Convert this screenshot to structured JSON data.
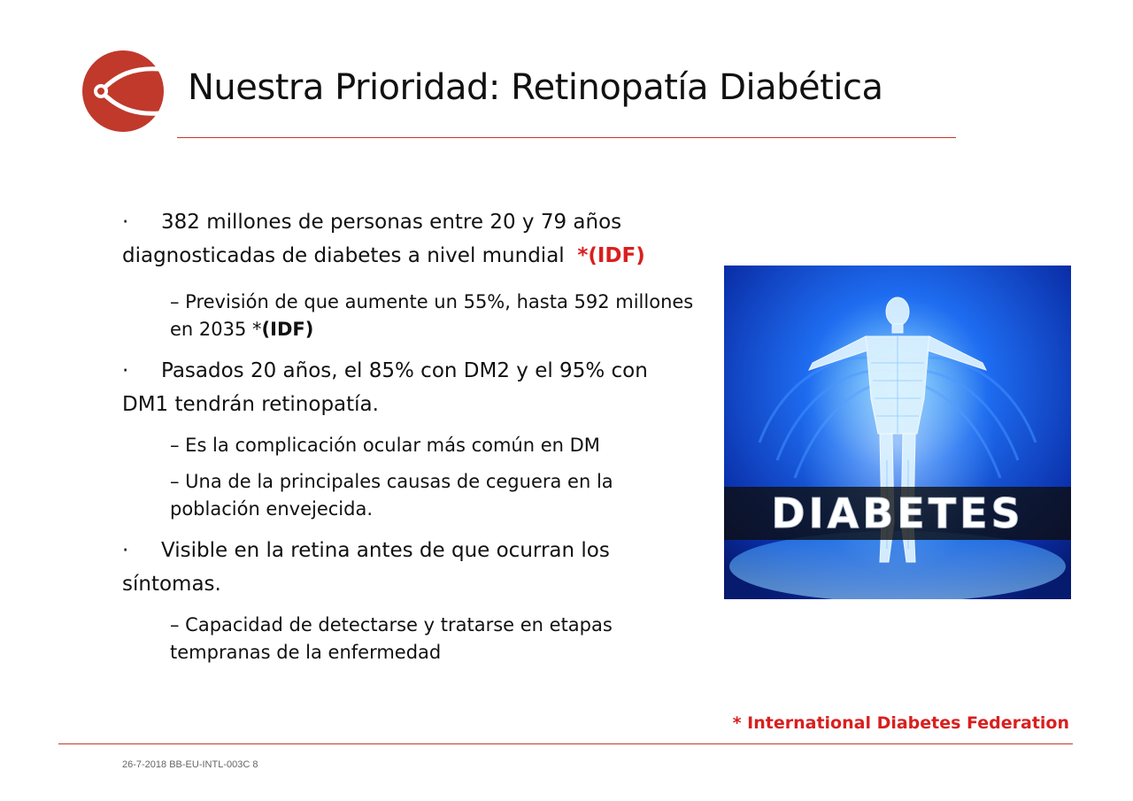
{
  "slide": {
    "title": "Nuestra Prioridad: Retinopatía Diabética",
    "logo_icon": "eye-logo-icon",
    "accent_color": "#d91f1f"
  },
  "content": {
    "b1_text": "382 millones de personas entre 20 y 79 años diagnosticadas de diabetes a nivel mundial",
    "b1_ref": "*(IDF)",
    "s1_text": "– Previsión de que aumente un 55%, hasta 592 millones en 2035 *",
    "s1_ref": "(IDF)",
    "b2_text": "Pasados  20 años, el 85% con DM2 y el 95% con DM1 tendrán retinopatía.",
    "s2_text": "– Es la complicación ocular más común en DM",
    "s3_text": "– Una de la principales causas de ceguera en la población envejecida.",
    "b3_text": "Visible en la retina antes de que ocurran los síntomas.",
    "s4_text": "– Capacidad de detectarse y tratarse en etapas tempranas de la enfermedad",
    "bullet_mark": "·"
  },
  "image": {
    "caption": "DIABETES",
    "subject": "wireframe-human-figure"
  },
  "source_note": "* International Diabetes Federation",
  "footer": "26-7-2018 BB-EU-INTL-003C 8"
}
